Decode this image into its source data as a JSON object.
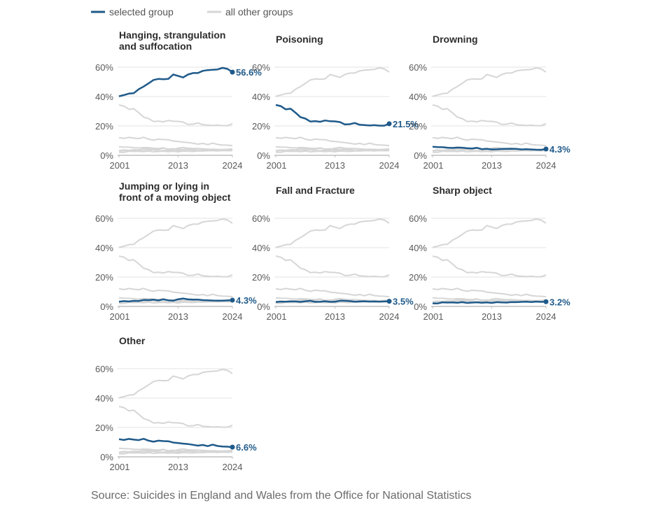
{
  "legend": {
    "selected_label": "selected group",
    "other_label": "all other groups",
    "selected_color": "#1f5a8a",
    "other_color": "#d6d6d6"
  },
  "source_text": "Source: Suicides in England and Wales from the Office for National Statistics",
  "chart_data": {
    "type": "line",
    "layout": "small-multiples",
    "x": [
      2001,
      2002,
      2003,
      2004,
      2005,
      2006,
      2007,
      2008,
      2009,
      2010,
      2011,
      2012,
      2013,
      2014,
      2015,
      2016,
      2017,
      2018,
      2019,
      2020,
      2021,
      2022,
      2023,
      2024
    ],
    "x_ticks": [
      "2001",
      "2013",
      "2024"
    ],
    "y_ticks": [
      "0%",
      "20%",
      "40%",
      "60%"
    ],
    "ylim": [
      0,
      60
    ],
    "y_unit": "%",
    "grid": true,
    "panels": [
      {
        "title_lines": [
          "Hanging, strangulation",
          "and suffocation"
        ],
        "end_label": "56.6%",
        "values": [
          40.2,
          41.0,
          42.0,
          42.3,
          45.0,
          46.8,
          49.0,
          51.3,
          52.0,
          51.8,
          52.0,
          55.0,
          54.0,
          53.0,
          55.0,
          56.0,
          56.0,
          57.5,
          58.0,
          58.2,
          58.5,
          59.5,
          58.8,
          56.6
        ]
      },
      {
        "title_lines": [
          "Poisoning"
        ],
        "end_label": "21.5%",
        "values": [
          34.3,
          33.5,
          31.3,
          31.7,
          29.0,
          26.0,
          25.0,
          23.0,
          23.3,
          22.8,
          23.7,
          23.2,
          23.1,
          22.6,
          21.0,
          21.2,
          22.0,
          20.8,
          20.6,
          20.3,
          20.5,
          20.2,
          20.2,
          21.5
        ]
      },
      {
        "title_lines": [
          "Drowning"
        ],
        "end_label": "4.3%",
        "values": [
          5.8,
          5.6,
          5.5,
          5.2,
          5.0,
          5.3,
          5.2,
          4.8,
          4.6,
          5.1,
          4.2,
          4.5,
          4.0,
          4.1,
          4.3,
          4.4,
          4.5,
          4.4,
          4.0,
          4.2,
          4.0,
          3.8,
          3.7,
          4.3
        ]
      },
      {
        "title_lines": [
          "Jumping or lying in",
          "front of a moving object"
        ],
        "end_label": "4.3%",
        "values": [
          3.2,
          3.6,
          3.4,
          3.8,
          3.7,
          4.4,
          4.3,
          4.6,
          4.1,
          4.8,
          4.2,
          3.9,
          4.9,
          5.4,
          4.8,
          4.6,
          4.6,
          4.3,
          4.2,
          4.0,
          3.9,
          3.9,
          4.1,
          4.3
        ]
      },
      {
        "title_lines": [
          "Fall and Fracture"
        ],
        "end_label": "3.5%",
        "values": [
          3.0,
          3.3,
          3.2,
          3.4,
          3.4,
          3.1,
          3.5,
          3.8,
          3.1,
          3.2,
          3.5,
          3.1,
          3.2,
          3.9,
          3.8,
          3.6,
          3.2,
          3.4,
          3.5,
          3.3,
          3.4,
          3.2,
          3.4,
          3.5
        ]
      },
      {
        "title_lines": [
          "Sharp object"
        ],
        "end_label": "3.2%",
        "values": [
          2.1,
          2.0,
          2.8,
          2.6,
          2.7,
          2.5,
          2.9,
          2.4,
          2.6,
          2.8,
          2.5,
          2.7,
          2.4,
          2.9,
          2.7,
          2.6,
          3.0,
          2.9,
          3.1,
          3.2,
          3.0,
          3.3,
          3.1,
          3.2
        ]
      },
      {
        "title_lines": [
          "Other"
        ],
        "end_label": "6.6%",
        "values": [
          12.0,
          11.5,
          12.2,
          11.7,
          11.4,
          12.3,
          11.0,
          10.3,
          11.0,
          10.7,
          10.6,
          9.7,
          9.4,
          9.0,
          8.7,
          8.2,
          7.6,
          8.1,
          7.3,
          8.3,
          7.4,
          7.0,
          6.9,
          6.6
        ]
      }
    ]
  }
}
